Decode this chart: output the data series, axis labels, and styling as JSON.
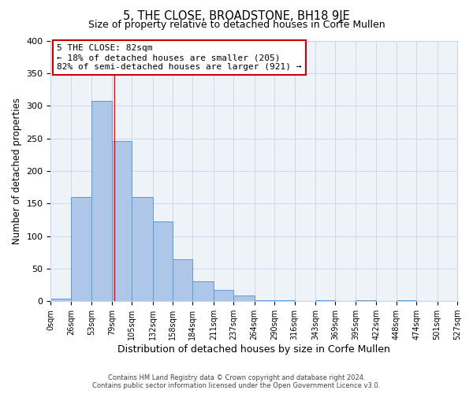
{
  "title": "5, THE CLOSE, BROADSTONE, BH18 9JE",
  "subtitle": "Size of property relative to detached houses in Corfe Mullen",
  "xlabel": "Distribution of detached houses by size in Corfe Mullen",
  "ylabel": "Number of detached properties",
  "bin_edges": [
    0,
    26,
    53,
    79,
    105,
    132,
    158,
    184,
    211,
    237,
    264,
    290,
    316,
    343,
    369,
    395,
    422,
    448,
    474,
    501,
    527
  ],
  "bar_heights": [
    4,
    160,
    307,
    246,
    160,
    122,
    64,
    30,
    17,
    9,
    1,
    1,
    0,
    1,
    0,
    1,
    0,
    1,
    0,
    0
  ],
  "bar_color": "#aec6e8",
  "bar_edgecolor": "#5b9bd5",
  "red_line_x": 82,
  "annotation_title": "5 THE CLOSE: 82sqm",
  "annotation_line1": "← 18% of detached houses are smaller (205)",
  "annotation_line2": "82% of semi-detached houses are larger (921) →",
  "annotation_box_color": "#ffffff",
  "annotation_box_edgecolor": "#cc0000",
  "ylim": [
    0,
    400
  ],
  "tick_labels": [
    "0sqm",
    "26sqm",
    "53sqm",
    "79sqm",
    "105sqm",
    "132sqm",
    "158sqm",
    "184sqm",
    "211sqm",
    "237sqm",
    "264sqm",
    "290sqm",
    "316sqm",
    "343sqm",
    "369sqm",
    "395sqm",
    "422sqm",
    "448sqm",
    "474sqm",
    "501sqm",
    "527sqm"
  ],
  "footer1": "Contains HM Land Registry data © Crown copyright and database right 2024.",
  "footer2": "Contains public sector information licensed under the Open Government Licence v3.0.",
  "grid_color": "#c8d4e8",
  "bg_color": "#eef2f9"
}
